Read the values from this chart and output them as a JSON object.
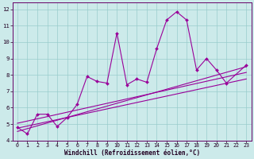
{
  "title": "",
  "xlabel": "Windchill (Refroidissement éolien,°C)",
  "ylabel": "",
  "bg_color": "#cceaea",
  "line_color": "#990099",
  "grid_color": "#99cccc",
  "xlim": [
    -0.5,
    23.5
  ],
  "ylim": [
    4,
    12.4
  ],
  "yticks": [
    4,
    5,
    6,
    7,
    8,
    9,
    10,
    11,
    12
  ],
  "xticks": [
    0,
    1,
    2,
    3,
    4,
    5,
    6,
    7,
    8,
    9,
    10,
    11,
    12,
    13,
    14,
    15,
    16,
    17,
    18,
    19,
    20,
    21,
    22,
    23
  ],
  "main_series": {
    "x": [
      0,
      1,
      2,
      3,
      4,
      5,
      6,
      7,
      8,
      9,
      10,
      11,
      12,
      13,
      14,
      15,
      16,
      17,
      18,
      19,
      20,
      21,
      23
    ],
    "y": [
      4.8,
      4.4,
      5.6,
      5.6,
      4.85,
      5.4,
      6.2,
      7.9,
      7.6,
      7.5,
      10.55,
      7.4,
      7.75,
      7.55,
      9.6,
      11.35,
      11.85,
      11.35,
      8.3,
      9.0,
      8.3,
      7.5,
      8.6
    ]
  },
  "trend_lines": [
    {
      "x": [
        0,
        23
      ],
      "y": [
        4.55,
        8.5
      ]
    },
    {
      "x": [
        0,
        23
      ],
      "y": [
        4.75,
        7.75
      ]
    },
    {
      "x": [
        0,
        23
      ],
      "y": [
        5.05,
        8.15
      ]
    }
  ]
}
